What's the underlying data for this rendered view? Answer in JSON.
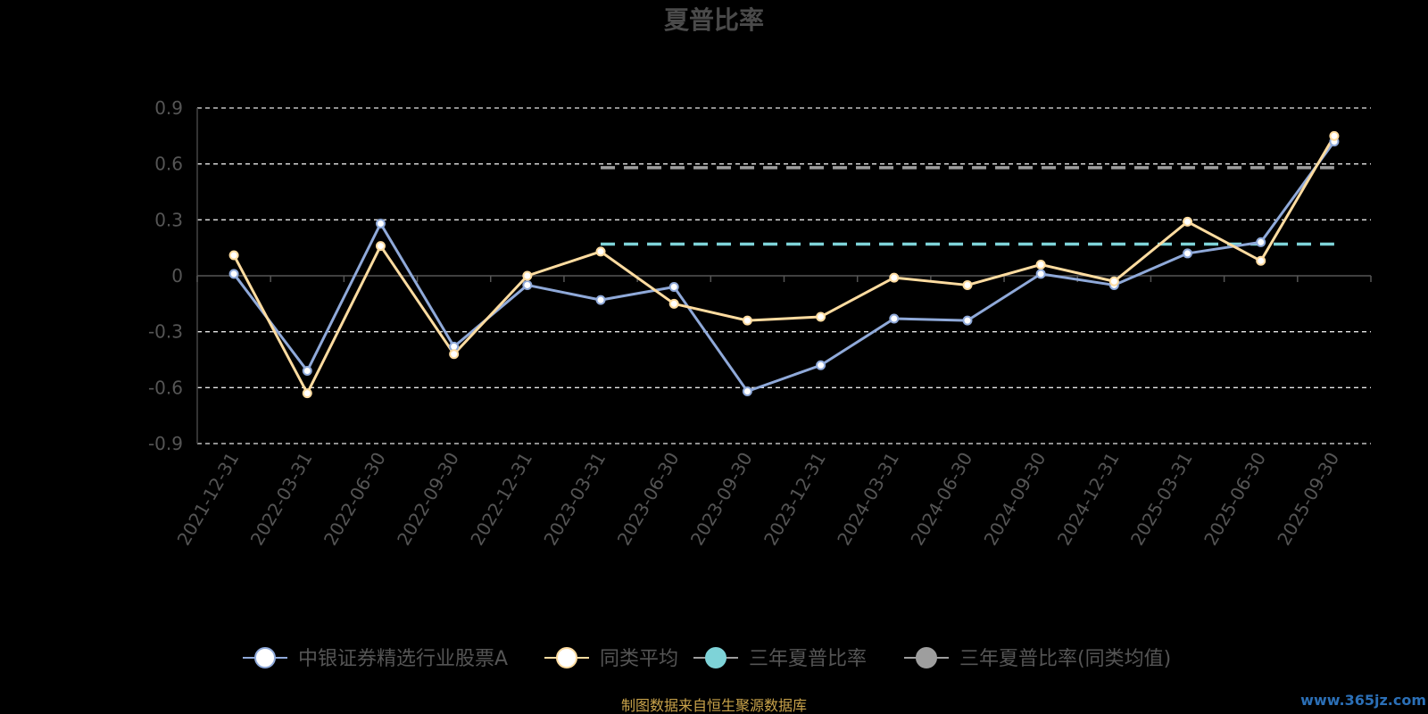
{
  "chart_data": {
    "type": "line",
    "title": "夏普比率",
    "categories": [
      "2021-12-31",
      "2022-03-31",
      "2022-06-30",
      "2022-09-30",
      "2022-12-31",
      "2023-03-31",
      "2023-06-30",
      "2023-09-30",
      "2023-12-31",
      "2024-03-31",
      "2024-06-30",
      "2024-09-30",
      "2024-12-31",
      "2025-03-31",
      "2025-06-30",
      "2025-09-30"
    ],
    "ylim": [
      -0.9,
      0.9
    ],
    "yticks": [
      "0.9",
      "0.6",
      "0.3",
      "0",
      "-0.3",
      "-0.6",
      "-0.9"
    ],
    "grid": true,
    "legend_position": "bottom",
    "series": [
      {
        "name": "中银证券精选行业股票A",
        "color": "#8fa9d9",
        "values": [
          0.01,
          -0.51,
          0.28,
          -0.38,
          -0.05,
          -0.13,
          -0.06,
          -0.62,
          -0.48,
          -0.23,
          -0.24,
          0.01,
          -0.05,
          0.12,
          0.18,
          0.72
        ]
      },
      {
        "name": "同类平均",
        "color": "#ffdca0",
        "values": [
          0.11,
          -0.63,
          0.16,
          -0.42,
          0.0,
          0.13,
          -0.15,
          -0.24,
          -0.22,
          -0.01,
          -0.05,
          0.06,
          -0.03,
          0.29,
          0.08,
          0.75
        ]
      },
      {
        "name": "三年夏普比率",
        "color": "#7ed3d8",
        "dashed": true,
        "start_category": "2023-03-31",
        "value": 0.17
      },
      {
        "name": "三年夏普比率(同类均值)",
        "color": "#9e9e9e",
        "dashed": true,
        "start_category": "2023-03-31",
        "value": 0.58
      }
    ]
  },
  "footer": {
    "source": "制图数据来自恒生聚源数据库",
    "watermark": "www.365jz.com"
  }
}
